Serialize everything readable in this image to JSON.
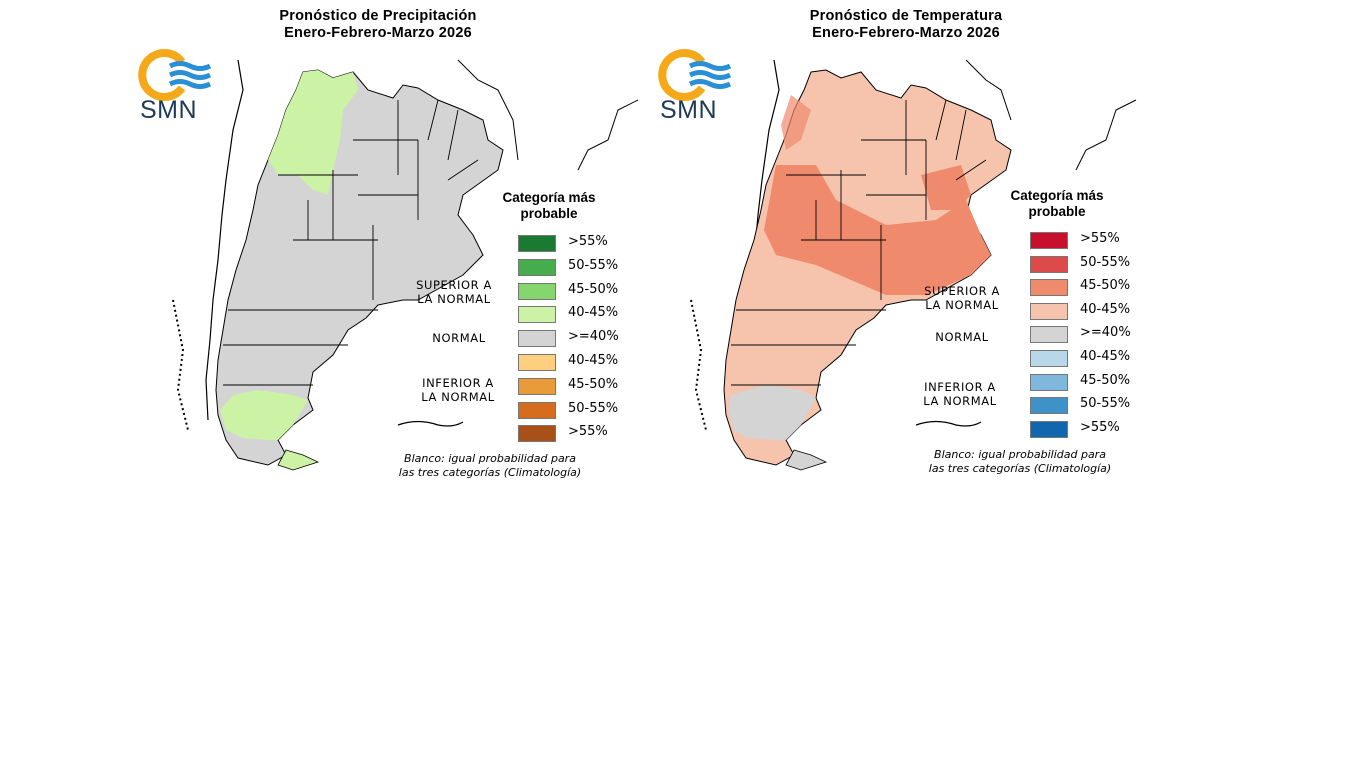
{
  "panels": [
    {
      "title_line1": "Pronóstico de Precipitación",
      "title_line2": "Enero-Febrero-Marzo 2026",
      "logo_text": "SMN",
      "legend_title_line1": "Categoría más",
      "legend_title_line2": "probable",
      "group_labels": {
        "superior_1": "SUPERIOR A",
        "superior_2": "LA NORMAL",
        "normal": "NORMAL",
        "inferior_1": "INFERIOR A",
        "inferior_2": "LA NORMAL"
      },
      "legend": [
        {
          "label": ">55%",
          "color": "#1a7a32"
        },
        {
          "label": "50-55%",
          "color": "#46ad4f"
        },
        {
          "label": "45-50%",
          "color": "#86d66e"
        },
        {
          "label": "40-45%",
          "color": "#ccf2a6"
        },
        {
          "label": ">=40%",
          "color": "#d4d4d4"
        },
        {
          "label": "40-45%",
          "color": "#fdcf7e"
        },
        {
          "label": "45-50%",
          "color": "#e99a39"
        },
        {
          "label": "50-55%",
          "color": "#d66c1e"
        },
        {
          "label": ">55%",
          "color": "#a85018"
        }
      ],
      "footnote_line1": "Blanco: igual probabilidad para",
      "footnote_line2": "las tres categorías (Climatología)"
    },
    {
      "title_line1": "Pronóstico de Temperatura",
      "title_line2": "Enero-Febrero-Marzo 2026",
      "logo_text": "SMN",
      "legend_title_line1": "Categoría más",
      "legend_title_line2": "probable",
      "group_labels": {
        "superior_1": "SUPERIOR A",
        "superior_2": "LA NORMAL",
        "normal": "NORMAL",
        "inferior_1": "INFERIOR A",
        "inferior_2": "LA NORMAL"
      },
      "legend": [
        {
          "label": ">55%",
          "color": "#c8102e"
        },
        {
          "label": "50-55%",
          "color": "#dd4a4a"
        },
        {
          "label": "45-50%",
          "color": "#ef8a6c"
        },
        {
          "label": "40-45%",
          "color": "#f6c4ad"
        },
        {
          "label": ">=40%",
          "color": "#d4d4d4"
        },
        {
          "label": "40-45%",
          "color": "#b8d8ea"
        },
        {
          "label": "45-50%",
          "color": "#7fb8dc"
        },
        {
          "label": "50-55%",
          "color": "#3f91c9"
        },
        {
          "label": ">55%",
          "color": "#1167ad"
        }
      ],
      "footnote_line1": "Blanco: igual probabilidad para",
      "footnote_line2": "las tres categorías (Climatología)"
    }
  ],
  "colors": {
    "logo_orange": "#f5a91a",
    "logo_blue": "#2a8fd6",
    "logo_text": "#1d3a56"
  }
}
